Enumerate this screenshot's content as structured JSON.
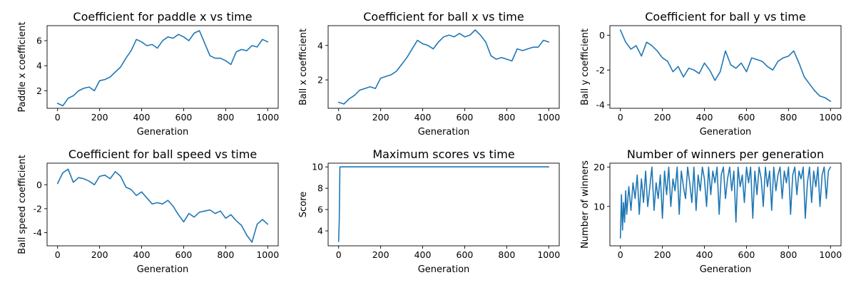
{
  "figure": {
    "background": "#ffffff",
    "line_color": "#1f77b4"
  },
  "chart_data": [
    {
      "type": "line",
      "title": "Coefficient for paddle x vs time",
      "xlabel": "Generation",
      "ylabel": "Paddle x coefficient",
      "xlim": [
        -50,
        1050
      ],
      "ylim": [
        0.6,
        7.2
      ],
      "xticks": [
        0,
        200,
        400,
        600,
        800,
        1000
      ],
      "yticks": [
        2,
        4,
        6
      ],
      "x": [
        0,
        25,
        50,
        75,
        100,
        125,
        150,
        175,
        200,
        225,
        250,
        275,
        300,
        325,
        350,
        375,
        400,
        425,
        450,
        475,
        500,
        525,
        550,
        575,
        600,
        625,
        650,
        675,
        700,
        725,
        750,
        775,
        800,
        825,
        850,
        875,
        900,
        925,
        950,
        975,
        1000
      ],
      "y": [
        1.0,
        0.8,
        1.4,
        1.6,
        2.0,
        2.2,
        2.3,
        2.0,
        2.8,
        2.9,
        3.1,
        3.5,
        3.9,
        4.6,
        5.2,
        6.1,
        5.9,
        5.6,
        5.7,
        5.4,
        6.0,
        6.3,
        6.2,
        6.5,
        6.3,
        6.0,
        6.6,
        6.8,
        5.8,
        4.8,
        4.6,
        4.6,
        4.4,
        4.1,
        5.1,
        5.3,
        5.2,
        5.6,
        5.5,
        6.1,
        5.9
      ]
    },
    {
      "type": "line",
      "title": "Coefficient for ball x vs time",
      "xlabel": "Generation",
      "ylabel": "Ball x coefficient",
      "xlim": [
        -50,
        1050
      ],
      "ylim": [
        0.35,
        5.15
      ],
      "xticks": [
        0,
        200,
        400,
        600,
        800,
        1000
      ],
      "yticks": [
        2,
        4
      ],
      "x": [
        0,
        25,
        50,
        75,
        100,
        125,
        150,
        175,
        200,
        225,
        250,
        275,
        300,
        325,
        350,
        375,
        400,
        425,
        450,
        475,
        500,
        525,
        550,
        575,
        600,
        625,
        650,
        675,
        700,
        725,
        750,
        775,
        800,
        825,
        850,
        875,
        900,
        925,
        950,
        975,
        1000
      ],
      "y": [
        0.7,
        0.6,
        0.9,
        1.1,
        1.4,
        1.5,
        1.6,
        1.5,
        2.1,
        2.2,
        2.3,
        2.5,
        2.9,
        3.3,
        3.8,
        4.3,
        4.1,
        4.0,
        3.8,
        4.2,
        4.5,
        4.6,
        4.5,
        4.7,
        4.5,
        4.6,
        4.9,
        4.6,
        4.2,
        3.4,
        3.2,
        3.3,
        3.2,
        3.1,
        3.8,
        3.7,
        3.8,
        3.9,
        3.9,
        4.3,
        4.2
      ]
    },
    {
      "type": "line",
      "title": "Coefficient for ball y vs time",
      "xlabel": "Generation",
      "ylabel": "Ball y coefficient",
      "xlim": [
        -50,
        1050
      ],
      "ylim": [
        -4.2,
        0.55
      ],
      "xticks": [
        0,
        200,
        400,
        600,
        800,
        1000
      ],
      "yticks": [
        -4,
        -2,
        0
      ],
      "x": [
        0,
        25,
        50,
        75,
        100,
        125,
        150,
        175,
        200,
        225,
        250,
        275,
        300,
        325,
        350,
        375,
        400,
        425,
        450,
        475,
        500,
        525,
        550,
        575,
        600,
        625,
        650,
        675,
        700,
        725,
        750,
        775,
        800,
        825,
        850,
        875,
        900,
        925,
        950,
        975,
        1000
      ],
      "y": [
        0.3,
        -0.4,
        -0.8,
        -0.6,
        -1.2,
        -0.4,
        -0.6,
        -0.9,
        -1.3,
        -1.5,
        -2.1,
        -1.8,
        -2.4,
        -1.9,
        -2.0,
        -2.2,
        -1.6,
        -2.0,
        -2.6,
        -2.1,
        -0.9,
        -1.7,
        -1.9,
        -1.6,
        -2.1,
        -1.3,
        -1.4,
        -1.5,
        -1.8,
        -2.0,
        -1.5,
        -1.3,
        -1.2,
        -0.9,
        -1.6,
        -2.4,
        -2.8,
        -3.2,
        -3.5,
        -3.6,
        -3.8
      ]
    },
    {
      "type": "line",
      "title": "Coefficient for ball speed vs time",
      "xlabel": "Generation",
      "ylabel": "Ball speed coefficient",
      "xlim": [
        -50,
        1050
      ],
      "ylim": [
        -5.1,
        1.8
      ],
      "xticks": [
        0,
        200,
        400,
        600,
        800,
        1000
      ],
      "yticks": [
        -4,
        -2,
        0
      ],
      "x": [
        0,
        25,
        50,
        75,
        100,
        125,
        150,
        175,
        200,
        225,
        250,
        275,
        300,
        325,
        350,
        375,
        400,
        425,
        450,
        475,
        500,
        525,
        550,
        575,
        600,
        625,
        650,
        675,
        700,
        725,
        750,
        775,
        800,
        825,
        850,
        875,
        900,
        925,
        950,
        975,
        1000
      ],
      "y": [
        0.1,
        1.0,
        1.3,
        0.2,
        0.6,
        0.5,
        0.3,
        0.0,
        0.7,
        0.8,
        0.5,
        1.1,
        0.7,
        -0.2,
        -0.4,
        -0.9,
        -0.6,
        -1.1,
        -1.6,
        -1.5,
        -1.6,
        -1.3,
        -1.8,
        -2.5,
        -3.1,
        -2.4,
        -2.7,
        -2.3,
        -2.2,
        -2.1,
        -2.4,
        -2.2,
        -2.8,
        -2.5,
        -3.0,
        -3.4,
        -4.2,
        -4.8,
        -3.3,
        -2.9,
        -3.3
      ]
    },
    {
      "type": "line",
      "title": "Maximum scores vs time",
      "xlabel": "Generation",
      "ylabel": "Score",
      "xlim": [
        -50,
        1050
      ],
      "ylim": [
        2.6,
        10.35
      ],
      "xticks": [
        0,
        200,
        400,
        600,
        800,
        1000
      ],
      "yticks": [
        4,
        6,
        8,
        10
      ],
      "x": [
        0,
        3,
        6,
        10,
        1000
      ],
      "y": [
        3,
        5,
        10,
        10,
        10
      ]
    },
    {
      "type": "line",
      "title": "Number of winners per generation",
      "xlabel": "Generation",
      "ylabel": "Number of winners",
      "xlim": [
        -50,
        1050
      ],
      "ylim": [
        0,
        21
      ],
      "xticks": [
        0,
        200,
        400,
        600,
        800,
        1000
      ],
      "yticks": [
        10,
        20
      ],
      "x": [
        0,
        5,
        10,
        15,
        20,
        25,
        30,
        40,
        50,
        60,
        70,
        80,
        90,
        100,
        110,
        120,
        130,
        140,
        150,
        160,
        170,
        180,
        190,
        200,
        210,
        220,
        230,
        240,
        250,
        260,
        270,
        280,
        290,
        300,
        310,
        320,
        330,
        340,
        350,
        360,
        370,
        380,
        390,
        400,
        410,
        420,
        430,
        440,
        450,
        460,
        470,
        480,
        490,
        500,
        510,
        520,
        530,
        540,
        550,
        560,
        570,
        580,
        590,
        600,
        610,
        620,
        630,
        640,
        650,
        660,
        670,
        680,
        690,
        700,
        710,
        720,
        730,
        740,
        750,
        760,
        770,
        780,
        790,
        800,
        810,
        820,
        830,
        840,
        850,
        860,
        870,
        880,
        890,
        900,
        910,
        920,
        930,
        940,
        950,
        960,
        970,
        980,
        990,
        1000
      ],
      "y": [
        2,
        13,
        4,
        11,
        6,
        14,
        8,
        15,
        9,
        16,
        12,
        18,
        8,
        17,
        11,
        19,
        10,
        15,
        20,
        9,
        16,
        12,
        18,
        7,
        19,
        13,
        20,
        10,
        17,
        14,
        20,
        8,
        19,
        15,
        12,
        20,
        16,
        11,
        20,
        9,
        18,
        14,
        20,
        17,
        10,
        20,
        13,
        19,
        16,
        20,
        8,
        18,
        20,
        12,
        17,
        20,
        14,
        19,
        6,
        20,
        15,
        18,
        11,
        20,
        16,
        20,
        7,
        19,
        13,
        20,
        17,
        10,
        20,
        15,
        19,
        9,
        20,
        14,
        18,
        20,
        12,
        19,
        16,
        20,
        8,
        18,
        20,
        13,
        19,
        17,
        20,
        7,
        16,
        20,
        11,
        19,
        15,
        20,
        10,
        18,
        20,
        12,
        19,
        20
      ]
    }
  ]
}
